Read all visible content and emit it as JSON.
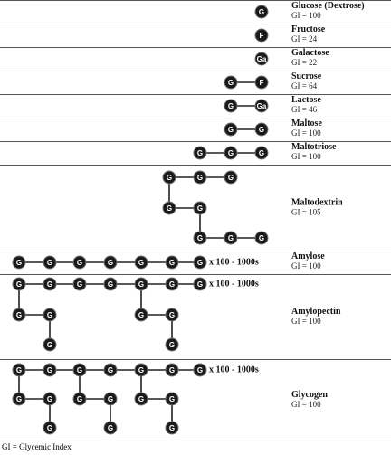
{
  "symbols": [
    "G",
    "F",
    "Ga"
  ],
  "repeat": "x 100 - 1000s",
  "rows": [
    {
      "name": "Glucose (Dextrose)",
      "gi": "GI = 100"
    },
    {
      "name": "Fructose",
      "gi": "GI = 24"
    },
    {
      "name": "Galactose",
      "gi": "GI = 22"
    },
    {
      "name": "Sucrose",
      "gi": "GI = 64"
    },
    {
      "name": "Lactose",
      "gi": "GI = 46"
    },
    {
      "name": "Maltose",
      "gi": "GI = 100"
    },
    {
      "name": "Maltotriose",
      "gi": "GI = 100"
    },
    {
      "name": "Maltodextrin",
      "gi": "GI = 105"
    },
    {
      "name": "Amylose",
      "gi": "GI = 100"
    },
    {
      "name": "Amylopectin",
      "gi": "GI = 100"
    },
    {
      "name": "Glycogen",
      "gi": "GI = 100"
    }
  ],
  "footnote": "GI = Glycemic Index"
}
